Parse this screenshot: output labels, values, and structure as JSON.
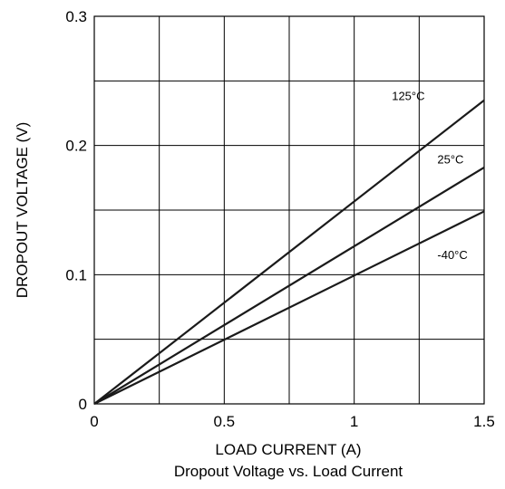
{
  "chart_data": {
    "type": "line",
    "title": "Dropout Voltage vs. Load Current",
    "xlabel": "LOAD CURRENT (A)",
    "ylabel": "DROPOUT VOLTAGE (V)",
    "xlim": [
      0,
      1.5
    ],
    "ylim": [
      0,
      0.3
    ],
    "x_ticks": [
      0,
      0.5,
      1,
      1.5
    ],
    "x_tick_labels": [
      "0",
      "0.5",
      "1",
      "1.5"
    ],
    "y_ticks": [
      0,
      0.1,
      0.2,
      0.3
    ],
    "y_tick_labels": [
      "0",
      "0.1",
      "0.2",
      "0.3"
    ],
    "x_grid": [
      0,
      0.25,
      0.5,
      0.75,
      1,
      1.25,
      1.5
    ],
    "y_grid": [
      0,
      0.05,
      0.1,
      0.15,
      0.2,
      0.25,
      0.3
    ],
    "grid": true,
    "series": [
      {
        "name": "125°C",
        "x": [
          0,
          1.5
        ],
        "y": [
          0,
          0.235
        ],
        "label_at": [
          1.145,
          0.235
        ]
      },
      {
        "name": "25°C",
        "x": [
          0,
          1.5
        ],
        "y": [
          0,
          0.183
        ],
        "label_at": [
          1.32,
          0.186
        ]
      },
      {
        "name": "-40°C",
        "x": [
          0,
          1.5
        ],
        "y": [
          0,
          0.149
        ],
        "label_at": [
          1.32,
          0.112
        ]
      }
    ]
  }
}
